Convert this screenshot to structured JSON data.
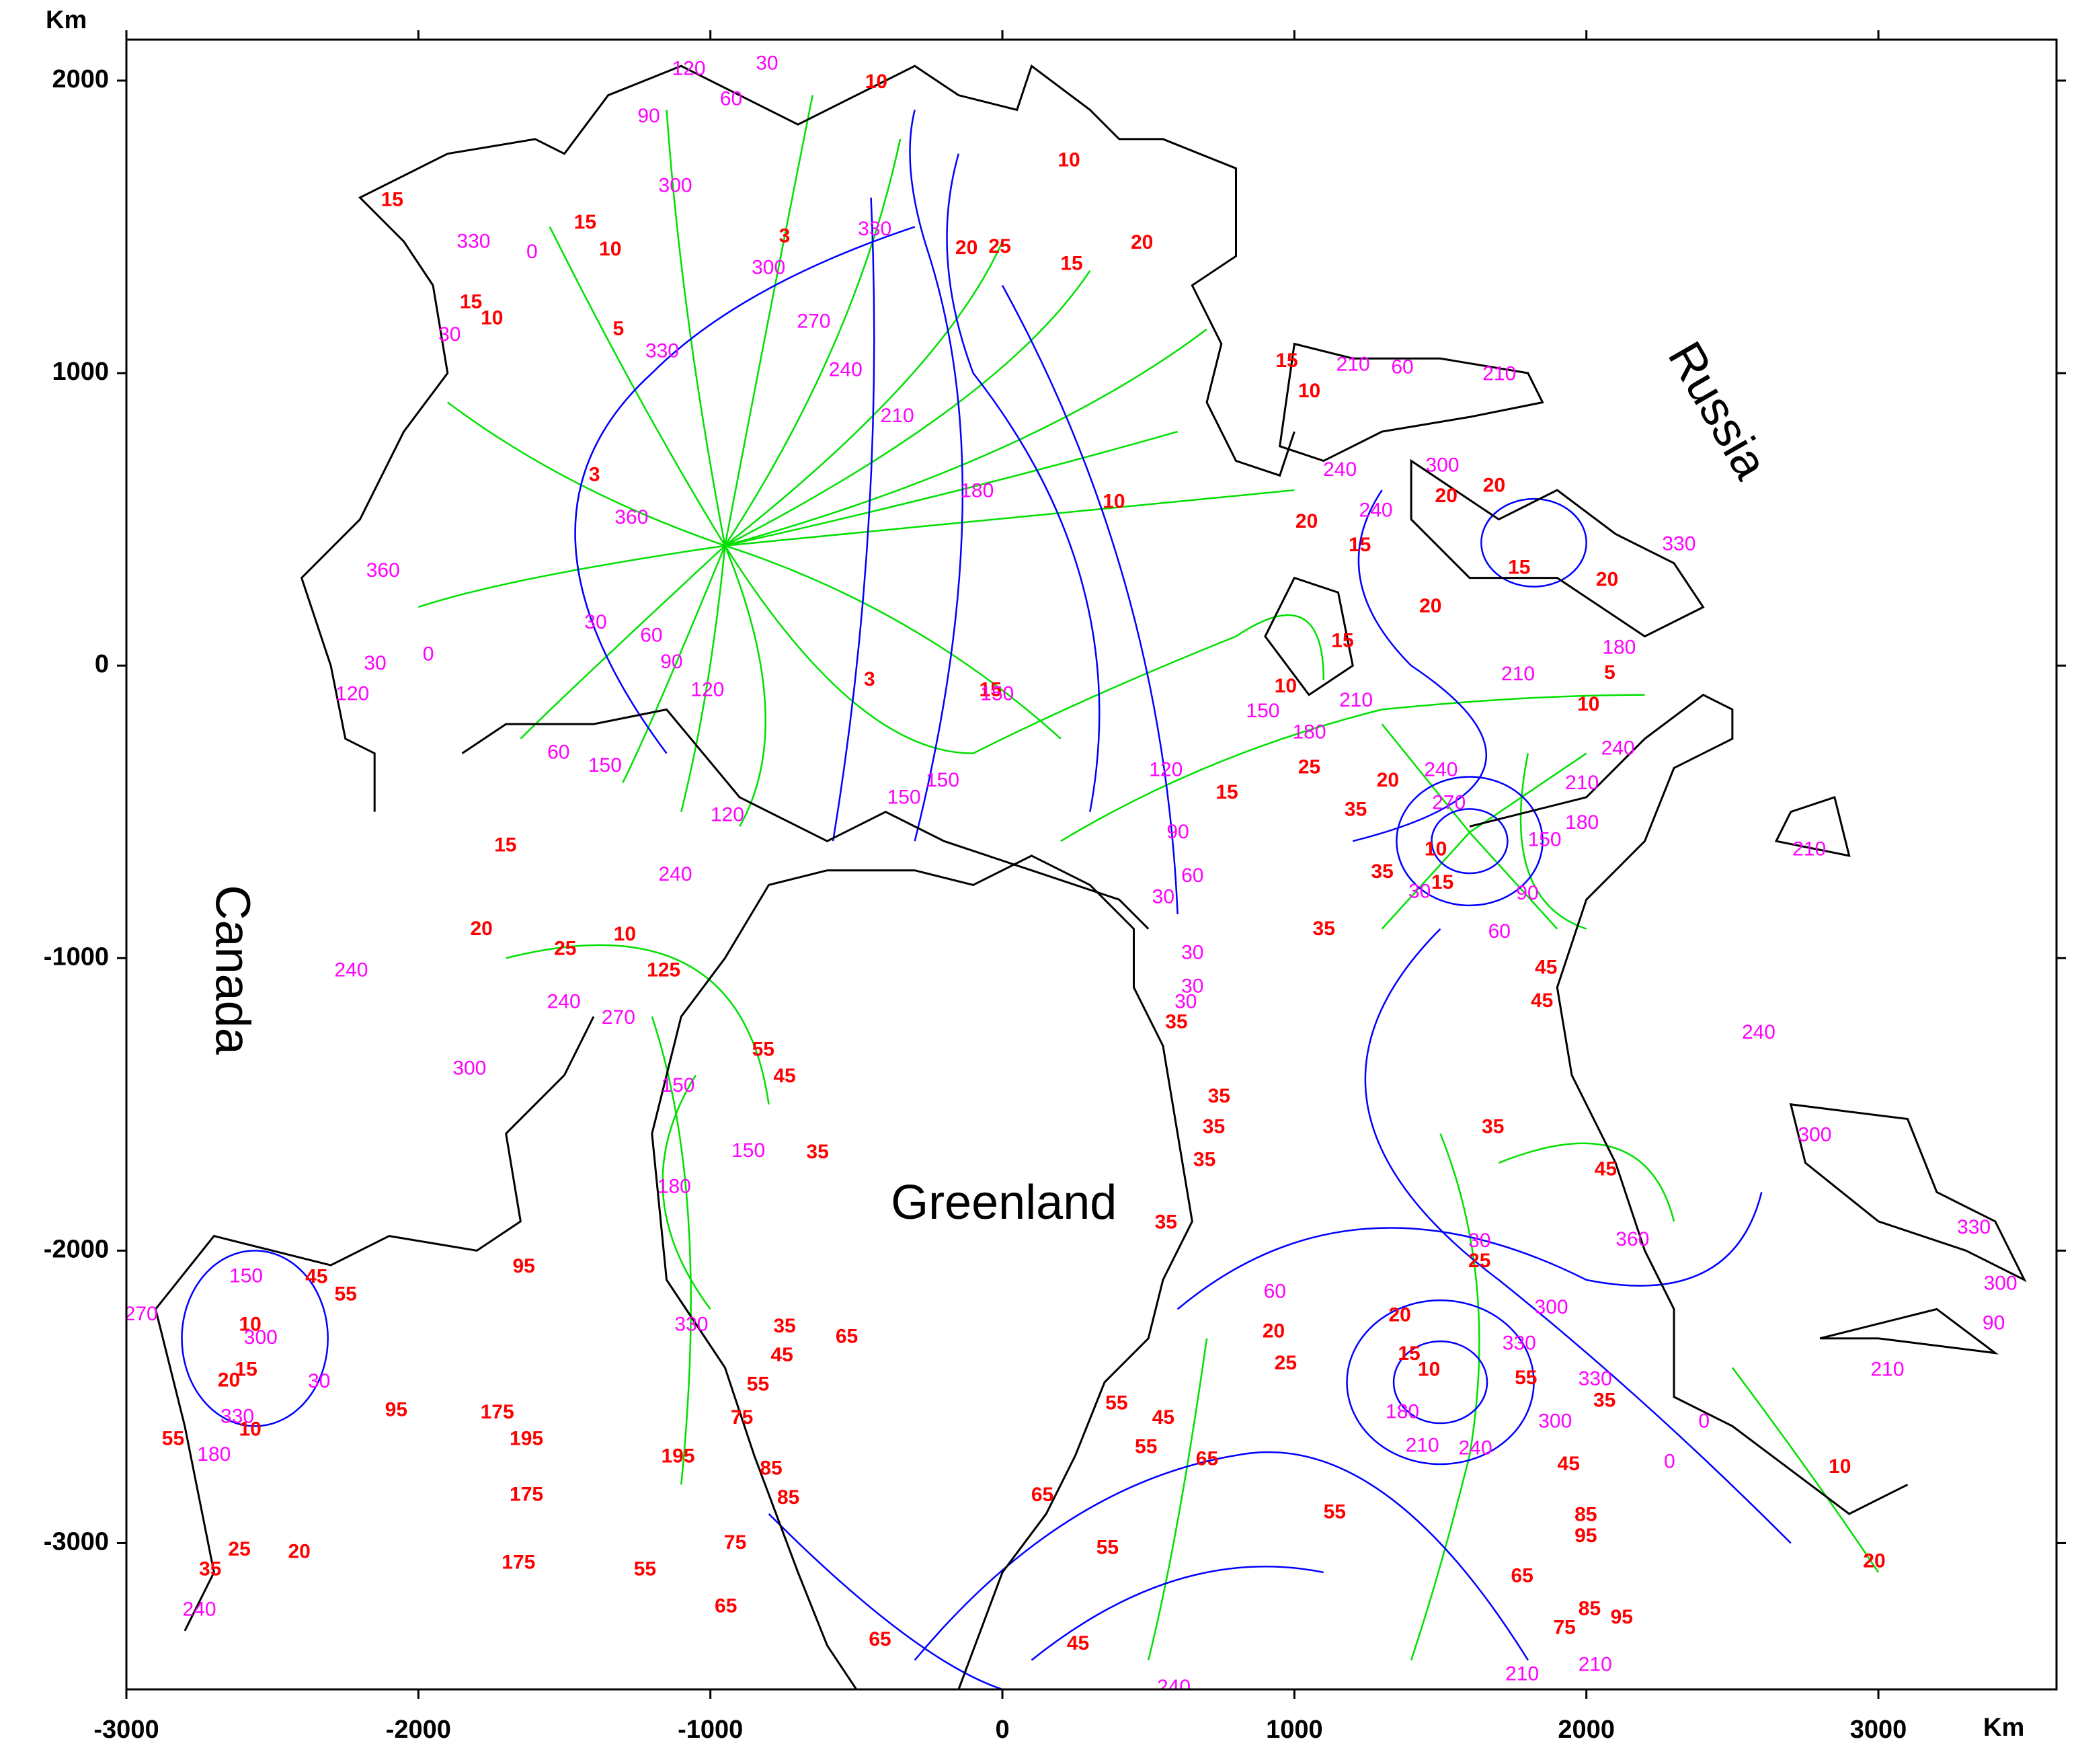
{
  "chart_data": {
    "type": "map",
    "x_label": "Km",
    "y_label": "Km",
    "xlim": [
      -3000,
      3610
    ],
    "ylim": [
      -3500,
      2140
    ],
    "xticks": [
      -3000,
      -2000,
      -1000,
      0,
      1000,
      2000,
      3000
    ],
    "yticks": [
      -3000,
      -2000,
      -1000,
      0,
      1000,
      2000
    ],
    "regions": {
      "text": [
        "Canada",
        "Russia",
        "Greenland"
      ],
      "x": [
        -2649,
        2440,
        5
      ],
      "y": [
        -1040,
        867,
        -1848
      ]
    },
    "amplitude_labels": {
      "color": "#ff0000",
      "values": [
        3,
        5,
        3,
        10,
        3,
        15,
        15,
        20,
        25,
        20,
        10,
        15,
        10,
        15,
        15,
        10,
        10,
        15,
        15,
        20,
        10,
        25,
        125,
        55,
        45,
        35,
        35,
        35,
        35,
        35,
        35,
        25,
        20,
        35,
        35,
        10,
        15,
        35,
        45,
        45,
        35,
        45,
        25,
        20,
        15,
        10,
        20,
        20,
        20,
        15,
        15,
        20,
        20,
        10,
        5,
        10,
        15,
        10,
        15,
        55,
        45,
        55,
        65,
        65,
        55,
        45,
        65,
        65,
        75,
        85,
        85,
        75,
        55,
        45,
        35,
        65,
        55,
        65,
        75,
        85,
        95,
        85,
        95,
        45,
        55,
        35,
        20,
        25,
        10,
        20,
        55,
        15,
        20,
        10,
        25,
        20,
        35,
        10,
        45,
        55,
        95,
        95,
        175,
        195,
        175,
        195,
        175,
        55
      ],
      "x": [
        -746,
        -1315,
        -1397,
        382,
        -455,
        -41,
        237,
        -123,
        -9,
        478,
        -1343,
        -1429,
        -1748,
        -1820,
        -2090,
        -432,
        228,
        769,
        -1702,
        -1784,
        -1293,
        -1497,
        -1160,
        -819,
        -746,
        -633,
        742,
        724,
        692,
        596,
        560,
        1051,
        1320,
        1210,
        1301,
        1484,
        1507,
        1101,
        1862,
        1848,
        1680,
        2066,
        1634,
        1361,
        1393,
        1461,
        1042,
        1520,
        1684,
        1224,
        1770,
        2071,
        1466,
        2007,
        2080,
        1051,
        974,
        970,
        1165,
        391,
        551,
        492,
        701,
        137,
        360,
        259,
        -419,
        -947,
        -915,
        -733,
        -792,
        -892,
        -837,
        -755,
        -746,
        -533,
        1138,
        1780,
        1925,
        1998,
        1998,
        2011,
        2121,
        1939,
        1793,
        2062,
        929,
        970,
        2868,
        2986,
        -2840,
        -2590,
        -2649,
        -2576,
        -2613,
        -2408,
        -2713,
        -2576,
        -2349,
        -2249,
        -1639,
        -2076,
        -1730,
        -1630,
        -1630,
        -1111,
        -1657,
        -1224
      ],
      "y": [
        1465,
        1148,
        649,
        558,
        -50,
        -86,
        1371,
        1425,
        1430,
        1443,
        1420,
        1512,
        1185,
        1240,
        1589,
        1993,
        1725,
        -436,
        -617,
        -903,
        -921,
        -971,
        -1044,
        -1316,
        -1407,
        -1666,
        -1475,
        -1580,
        -1693,
        -1221,
        -1906,
        -350,
        -395,
        -495,
        -708,
        -631,
        -744,
        -903,
        -1035,
        -1149,
        -1580,
        -1725,
        -2038,
        -2224,
        -2356,
        -2410,
        490,
        577,
        613,
        409,
        332,
        291,
        200,
        -136,
        -27,
        935,
        1039,
        -73,
        82,
        -2524,
        -2574,
        -2674,
        -2715,
        -2838,
        -3019,
        -3346,
        -3332,
        -3219,
        -3001,
        -2847,
        -2747,
        -2574,
        -2460,
        -2360,
        -2261,
        -2297,
        -2897,
        -3115,
        -3292,
        -2906,
        -2979,
        -3228,
        -3256,
        -2733,
        -2438,
        -2515,
        -2279,
        -2388,
        -2742,
        -3065,
        -2646,
        -2410,
        -2446,
        -2614,
        -3024,
        -3033,
        -3092,
        -2256,
        -2093,
        -2152,
        -2057,
        -2547,
        -2556,
        -2646,
        -2837,
        -2706,
        -3069,
        -3092
      ]
    },
    "phase_labels": {
      "color": "#ff00ff",
      "values": [
        120,
        30,
        60,
        90,
        300,
        0,
        330,
        30,
        300,
        270,
        240,
        210,
        180,
        330,
        360,
        30,
        60,
        90,
        120,
        150,
        330,
        360,
        30,
        0,
        120,
        60,
        150,
        120,
        150,
        150,
        120,
        90,
        60,
        30,
        30,
        30,
        30,
        240,
        240,
        270,
        240,
        300,
        150,
        180,
        150,
        330,
        60,
        30,
        330,
        300,
        360,
        330,
        300,
        240,
        210,
        180,
        0,
        0,
        90,
        300,
        330,
        210,
        240,
        240,
        300,
        210,
        180,
        240,
        210,
        180,
        150,
        90,
        60,
        30,
        240,
        270,
        150,
        180,
        210,
        210,
        60,
        210,
        330,
        240,
        300,
        210,
        240,
        210,
        210,
        150,
        300,
        330,
        180,
        240,
        30,
        270
      ],
      "x": [
        -1074,
        -806,
        -929,
        -1211,
        -1120,
        -1611,
        -1811,
        -1893,
        -801,
        -646,
        -537,
        -360,
        -87,
        -1165,
        -1270,
        -1393,
        -1202,
        -1133,
        -1010,
        -18,
        -437,
        -2121,
        -2148,
        -1966,
        -2226,
        -1520,
        -1361,
        -942,
        -337,
        -205,
        560,
        601,
        651,
        551,
        651,
        651,
        628,
        -1120,
        -1502,
        -1315,
        -2230,
        -1825,
        -1111,
        -1124,
        -870,
        -1065,
        933,
        1634,
        1770,
        1880,
        2158,
        2030,
        1893,
        1620,
        1438,
        1370,
        2403,
        2285,
        3395,
        3418,
        3327,
        3031,
        1156,
        1279,
        1507,
        1766,
        2112,
        2108,
        1985,
        1985,
        1857,
        1798,
        1702,
        1429,
        1502,
        1529,
        892,
        1051,
        1211,
        1201,
        1370,
        1702,
        2317,
        2590,
        2782,
        2763,
        587,
        1780,
        2030,
        -2590,
        -2540,
        -2620,
        -2700,
        -2750,
        -2340,
        -2950
      ],
      "y": [
        2038,
        2056,
        1934,
        1875,
        1638,
        1411,
        1447,
        1129,
        1357,
        1173,
        1008,
        851,
        594,
        1072,
        504,
        145,
        100,
        9,
        -86,
        -100,
        1489,
        322,
        5,
        36,
        -100,
        -300,
        -345,
        -513,
        -454,
        -395,
        -359,
        -572,
        -722,
        -794,
        -985,
        -1100,
        -1153,
        -717,
        -1153,
        -1207,
        -1044,
        -1380,
        -1439,
        -1784,
        -1661,
        -2256,
        -2143,
        -1970,
        -2320,
        -2197,
        -1965,
        -2442,
        -2587,
        -2678,
        -2669,
        -2555,
        -2587,
        -2724,
        -2251,
        -2115,
        -1924,
        -2410,
        667,
        527,
        681,
        -32,
        59,
        -286,
        -404,
        -540,
        -599,
        -781,
        -912,
        -776,
        -359,
        -472,
        -159,
        -231,
        -122,
        1026,
        1017,
        994,
        413,
        -1257,
        -1607,
        -631,
        -3496,
        -3451,
        -3419,
        -2090,
        -2300,
        -2570,
        -2700,
        -3230,
        -2450,
        -2220
      ]
    }
  }
}
